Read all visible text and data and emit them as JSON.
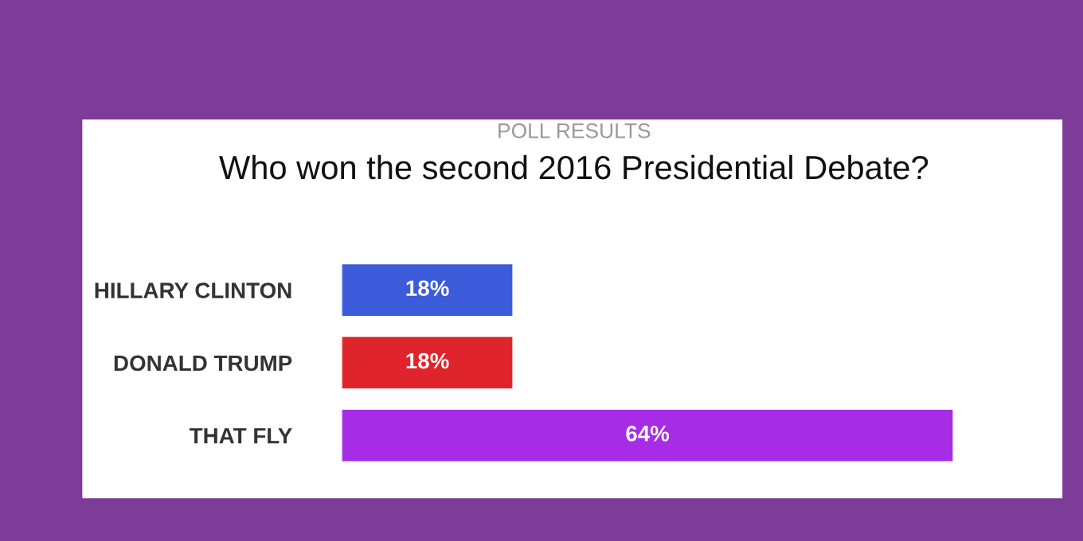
{
  "chart_data": {
    "type": "bar",
    "orientation": "horizontal",
    "subtitle": "POLL RESULTS",
    "title": "Who won the second 2016 Presidential Debate?",
    "categories": [
      "HILLARY CLINTON",
      "DONALD TRUMP",
      "THAT FLY"
    ],
    "values": [
      18,
      18,
      64
    ],
    "colors": [
      "#3b5bdb",
      "#e0242b",
      "#a62ce6"
    ],
    "value_labels": [
      "18%",
      "18%",
      "64%"
    ],
    "tick_labels": "y",
    "grid": false,
    "legend": false
  }
}
